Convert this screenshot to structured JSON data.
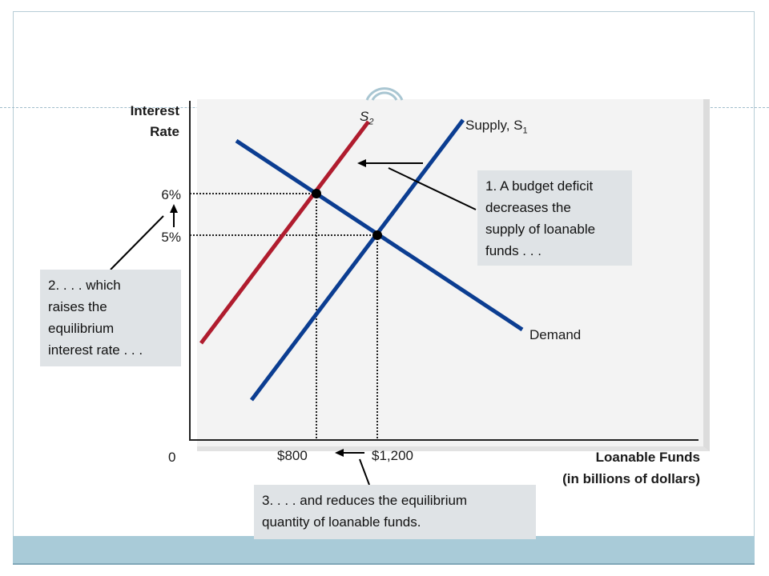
{
  "chart_data": {
    "type": "line",
    "xlabel_line1": "Loanable Funds",
    "xlabel_line2": "(in billions of dollars)",
    "ylabel_line1": "Interest",
    "ylabel_line2": "Rate",
    "origin_label": "0",
    "y_ticks": [
      "6%",
      "5%"
    ],
    "x_ticks": [
      "$800",
      "$1,200"
    ],
    "curves": {
      "supply1": {
        "label": "Supply, S",
        "sub": "1",
        "color": "#0b3d91"
      },
      "supply2": {
        "label": "S",
        "sub": "2",
        "color": "#b01c2e"
      },
      "demand": {
        "label": "Demand",
        "color": "#0b3d91"
      }
    },
    "equilibria": [
      {
        "quantity": 800,
        "rate": 6
      },
      {
        "quantity": 1200,
        "rate": 5
      }
    ]
  },
  "callouts": {
    "budget_deficit": [
      "1. A budget deficit",
      "decreases the",
      "supply of loanable",
      "funds . . ."
    ],
    "raises_rate": [
      "2. . . . which",
      "raises the",
      "equilibrium",
      "interest rate . . ."
    ],
    "reduces_quantity": [
      "3. . . . and reduces the equilibrium",
      "quantity of loanable funds."
    ]
  }
}
